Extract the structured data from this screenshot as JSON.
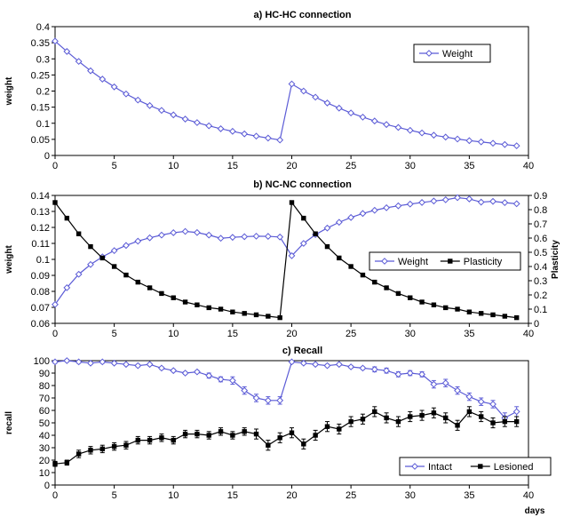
{
  "colors": {
    "weight": "#5b5bd6",
    "lesioned": "#000000",
    "axis": "#000000"
  },
  "chart_data": [
    {
      "type": "line",
      "title": "a) HC-HC connection",
      "xlabel": "",
      "ylabel": "weight",
      "xlim": [
        0,
        40
      ],
      "ylim": [
        0,
        0.4
      ],
      "xticks": [
        0,
        5,
        10,
        15,
        20,
        25,
        30,
        35,
        40
      ],
      "yticks": [
        0,
        0.05,
        0.1,
        0.15,
        0.2,
        0.25,
        0.3,
        0.35,
        0.4
      ],
      "legend_position": "top-right",
      "series": [
        {
          "name": "Weight",
          "marker": "diamond-open",
          "color": "#5b5bd6",
          "x": [
            0,
            1,
            2,
            3,
            4,
            5,
            6,
            7,
            8,
            9,
            10,
            11,
            12,
            13,
            14,
            15,
            16,
            17,
            18,
            19,
            20,
            21,
            22,
            23,
            24,
            25,
            26,
            27,
            28,
            29,
            30,
            31,
            32,
            33,
            34,
            35,
            36,
            37,
            38,
            39
          ],
          "y": [
            0.355,
            0.323,
            0.292,
            0.263,
            0.237,
            0.213,
            0.191,
            0.172,
            0.155,
            0.14,
            0.126,
            0.113,
            0.102,
            0.092,
            0.083,
            0.075,
            0.067,
            0.06,
            0.054,
            0.048,
            0.222,
            0.2,
            0.181,
            0.163,
            0.147,
            0.132,
            0.119,
            0.107,
            0.096,
            0.087,
            0.078,
            0.07,
            0.063,
            0.057,
            0.051,
            0.046,
            0.042,
            0.038,
            0.034,
            0.03
          ]
        }
      ]
    },
    {
      "type": "line",
      "title": "b) NC-NC connection",
      "xlabel": "",
      "ylabel": "weight",
      "y2label": "Plasticity",
      "xlim": [
        0,
        40
      ],
      "ylim": [
        0.06,
        0.14
      ],
      "y2lim": [
        0,
        0.9
      ],
      "xticks": [
        0,
        5,
        10,
        15,
        20,
        25,
        30,
        35,
        40
      ],
      "yticks": [
        0.06,
        0.07,
        0.08,
        0.09,
        0.1,
        0.11,
        0.12,
        0.13,
        0.14
      ],
      "y2ticks": [
        0,
        0.1,
        0.2,
        0.3,
        0.4,
        0.5,
        0.6,
        0.7,
        0.8,
        0.9
      ],
      "legend_position": "center-right",
      "series": [
        {
          "name": "Weight",
          "axis": "left",
          "marker": "diamond-open",
          "color": "#5b5bd6",
          "x": [
            0,
            1,
            2,
            3,
            4,
            5,
            6,
            7,
            8,
            9,
            10,
            11,
            12,
            13,
            14,
            15,
            16,
            17,
            18,
            19,
            20,
            21,
            22,
            23,
            24,
            25,
            26,
            27,
            28,
            29,
            30,
            31,
            32,
            33,
            34,
            35,
            36,
            37,
            38,
            39
          ],
          "y": [
            0.0718,
            0.0823,
            0.0907,
            0.0968,
            0.1016,
            0.1055,
            0.1087,
            0.1114,
            0.1135,
            0.1152,
            0.1167,
            0.1175,
            0.1168,
            0.1152,
            0.1132,
            0.1138,
            0.1142,
            0.1145,
            0.1144,
            0.114,
            0.1023,
            0.11,
            0.1155,
            0.1196,
            0.1232,
            0.1262,
            0.1287,
            0.1307,
            0.1323,
            0.1335,
            0.1346,
            0.1356,
            0.1365,
            0.1373,
            0.1386,
            0.1378,
            0.1358,
            0.1363,
            0.1355,
            0.1348
          ]
        },
        {
          "name": "Plasticity",
          "axis": "right",
          "marker": "square-filled",
          "color": "#000000",
          "x": [
            0,
            1,
            2,
            3,
            4,
            5,
            6,
            7,
            8,
            9,
            10,
            11,
            12,
            13,
            14,
            15,
            16,
            17,
            18,
            19,
            20,
            21,
            22,
            23,
            24,
            25,
            26,
            27,
            28,
            29,
            30,
            31,
            32,
            33,
            34,
            35,
            36,
            37,
            38,
            39
          ],
          "y": [
            0.85,
            0.74,
            0.63,
            0.54,
            0.46,
            0.4,
            0.34,
            0.29,
            0.25,
            0.21,
            0.18,
            0.15,
            0.13,
            0.11,
            0.1,
            0.08,
            0.07,
            0.06,
            0.05,
            0.04,
            0.85,
            0.74,
            0.63,
            0.54,
            0.46,
            0.4,
            0.34,
            0.29,
            0.25,
            0.21,
            0.18,
            0.15,
            0.13,
            0.11,
            0.1,
            0.08,
            0.07,
            0.06,
            0.05,
            0.04
          ]
        }
      ]
    },
    {
      "type": "line",
      "title": "c) Recall",
      "xlabel": "days",
      "ylabel": "recall",
      "xlim": [
        0,
        40
      ],
      "ylim": [
        0,
        100
      ],
      "xticks": [
        0,
        5,
        10,
        15,
        20,
        25,
        30,
        35,
        40
      ],
      "yticks": [
        0,
        10,
        20,
        30,
        40,
        50,
        60,
        70,
        80,
        90,
        100
      ],
      "legend_position": "bottom-right",
      "error_bars": true,
      "series": [
        {
          "name": "Intact",
          "marker": "diamond-open",
          "color": "#5b5bd6",
          "x": [
            0,
            1,
            2,
            3,
            4,
            5,
            6,
            7,
            8,
            9,
            10,
            11,
            12,
            13,
            14,
            15,
            16,
            17,
            18,
            19,
            20,
            21,
            22,
            23,
            24,
            25,
            26,
            27,
            28,
            29,
            30,
            31,
            32,
            33,
            34,
            35,
            36,
            37,
            38,
            39
          ],
          "y": [
            99,
            100,
            99,
            98,
            99,
            98,
            97,
            96,
            97,
            94,
            92,
            90,
            91,
            88,
            85,
            84,
            76,
            70,
            68,
            68,
            99,
            98,
            97,
            96,
            97,
            95,
            94,
            93,
            92,
            89,
            90,
            89,
            81,
            82,
            76,
            71,
            67,
            65,
            54,
            59
          ],
          "err": [
            1,
            1,
            1,
            1,
            1,
            1,
            1,
            1,
            1,
            1,
            1,
            1,
            1,
            2,
            2,
            3,
            3,
            3,
            3,
            3,
            1,
            1,
            1,
            1,
            1,
            1,
            1,
            2,
            2,
            2,
            2,
            2,
            3,
            3,
            3,
            3,
            3,
            3,
            4,
            4
          ]
        },
        {
          "name": "Lesioned",
          "marker": "square-filled",
          "color": "#000000",
          "x": [
            0,
            1,
            2,
            3,
            4,
            5,
            6,
            7,
            8,
            9,
            10,
            11,
            12,
            13,
            14,
            15,
            16,
            17,
            18,
            19,
            20,
            21,
            22,
            23,
            24,
            25,
            26,
            27,
            28,
            29,
            30,
            31,
            32,
            33,
            34,
            35,
            36,
            37,
            38,
            39
          ],
          "y": [
            17,
            18,
            25,
            28,
            29,
            31,
            32,
            36,
            36,
            38,
            36,
            41,
            41,
            40,
            43,
            40,
            43,
            41,
            32,
            38,
            42,
            33,
            40,
            47,
            45,
            51,
            53,
            59,
            54,
            51,
            55,
            56,
            58,
            54,
            48,
            59,
            55,
            50,
            51,
            51
          ],
          "err": [
            2,
            2,
            3,
            3,
            3,
            3,
            3,
            3,
            3,
            3,
            3,
            3,
            3,
            3,
            3,
            3,
            3,
            4,
            4,
            4,
            4,
            4,
            4,
            4,
            4,
            4,
            4,
            4,
            4,
            4,
            4,
            4,
            4,
            4,
            4,
            4,
            4,
            4,
            4,
            4
          ]
        }
      ]
    }
  ]
}
